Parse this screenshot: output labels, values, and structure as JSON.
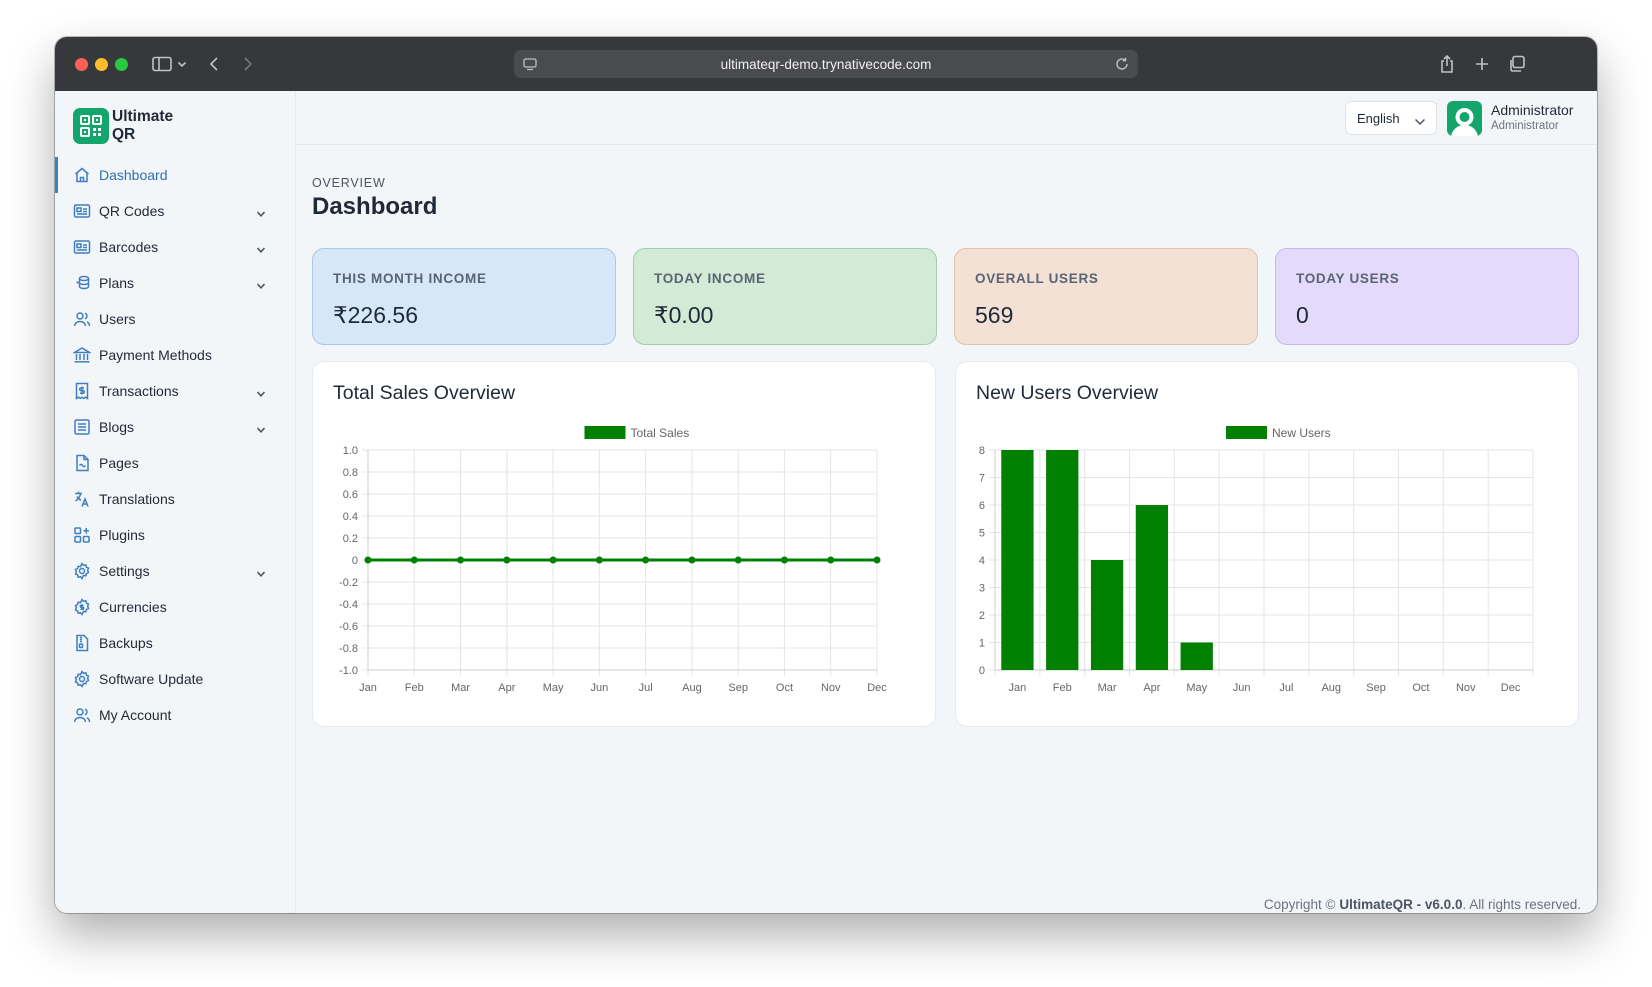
{
  "browser": {
    "url": "ultimateqr-demo.trynativecode.com"
  },
  "brand": {
    "name": "Ultimate QR"
  },
  "sidebar": {
    "items": [
      {
        "label": "Dashboard",
        "icon": "home-icon",
        "active": true,
        "expandable": false
      },
      {
        "label": "QR Codes",
        "icon": "id-card-icon",
        "active": false,
        "expandable": true
      },
      {
        "label": "Barcodes",
        "icon": "id-card-icon",
        "active": false,
        "expandable": true
      },
      {
        "label": "Plans",
        "icon": "coins-icon",
        "active": false,
        "expandable": true
      },
      {
        "label": "Users",
        "icon": "users-icon",
        "active": false,
        "expandable": false
      },
      {
        "label": "Payment Methods",
        "icon": "bank-icon",
        "active": false,
        "expandable": false
      },
      {
        "label": "Transactions",
        "icon": "receipt-icon",
        "active": false,
        "expandable": true
      },
      {
        "label": "Blogs",
        "icon": "list-icon",
        "active": false,
        "expandable": true
      },
      {
        "label": "Pages",
        "icon": "page-icon",
        "active": false,
        "expandable": false
      },
      {
        "label": "Translations",
        "icon": "translate-icon",
        "active": false,
        "expandable": false
      },
      {
        "label": "Plugins",
        "icon": "plugins-icon",
        "active": false,
        "expandable": false
      },
      {
        "label": "Settings",
        "icon": "gear-icon",
        "active": false,
        "expandable": true
      },
      {
        "label": "Currencies",
        "icon": "gear-coin-icon",
        "active": false,
        "expandable": false
      },
      {
        "label": "Backups",
        "icon": "backup-icon",
        "active": false,
        "expandable": false
      },
      {
        "label": "Software Update",
        "icon": "gear-icon",
        "active": false,
        "expandable": false
      },
      {
        "label": "My Account",
        "icon": "users-icon",
        "active": false,
        "expandable": false
      }
    ]
  },
  "header": {
    "language": "English",
    "user_name": "Administrator",
    "user_role": "Administrator"
  },
  "page": {
    "overline": "OVERVIEW",
    "title": "Dashboard"
  },
  "stats": [
    {
      "label": "THIS MONTH INCOME",
      "value": "₹226.56",
      "color": "#d6e7fa",
      "border": "#a9c9ee"
    },
    {
      "label": "TODAY INCOME",
      "value": "₹0.00",
      "color": "#d3ead6",
      "border": "#9fd0a9"
    },
    {
      "label": "OVERALL USERS",
      "value": "569",
      "color": "#f4e1d5",
      "border": "#e4c2a9"
    },
    {
      "label": "TODAY USERS",
      "value": "0",
      "color": "#e4dafb",
      "border": "#c8b6f3"
    }
  ],
  "chart_data": [
    {
      "type": "line",
      "title": "Total Sales Overview",
      "categories": [
        "Jan",
        "Feb",
        "Mar",
        "Apr",
        "May",
        "Jun",
        "Jul",
        "Aug",
        "Sep",
        "Oct",
        "Nov",
        "Dec"
      ],
      "series": [
        {
          "name": "Total Sales",
          "values": [
            0,
            0,
            0,
            0,
            0,
            0,
            0,
            0,
            0,
            0,
            0,
            0
          ],
          "color": "#008000"
        }
      ],
      "ylim": [
        -1.0,
        1.0
      ],
      "yticks": [
        "1.0",
        "0.8",
        "0.6",
        "0.4",
        "0.2",
        "0",
        "-0.2",
        "-0.4",
        "-0.6",
        "-0.8",
        "-1.0"
      ],
      "legend": "top-center",
      "grid": true
    },
    {
      "type": "bar",
      "title": "New Users Overview",
      "categories": [
        "Jan",
        "Feb",
        "Mar",
        "Apr",
        "May",
        "Jun",
        "Jul",
        "Aug",
        "Sep",
        "Oct",
        "Nov",
        "Dec"
      ],
      "series": [
        {
          "name": "New Users",
          "values": [
            8,
            8,
            4,
            6,
            1,
            0,
            0,
            0,
            0,
            0,
            0,
            0
          ],
          "color": "#008000"
        }
      ],
      "ylim": [
        0,
        8
      ],
      "yticks": [
        "8",
        "7",
        "6",
        "5",
        "4",
        "3",
        "2",
        "1",
        "0"
      ],
      "legend": "top-center",
      "grid": true
    }
  ],
  "footer": {
    "prefix": "Copyright ©",
    "product": "UltimateQR - v6.0.0",
    "suffix": ". All rights reserved."
  }
}
